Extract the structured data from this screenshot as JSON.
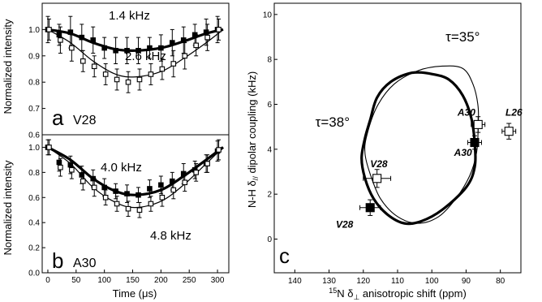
{
  "chart_data": [
    {
      "panel_letter": "a",
      "panel_name": "V28",
      "type": "scatter",
      "xlabel": "",
      "ylabel": "Normalized intensity",
      "xlim": [
        -10,
        320
      ],
      "ylim": [
        0.6,
        1.1
      ],
      "xticks": [],
      "xtick_labels": [],
      "yticks": [
        0.6,
        0.7,
        0.8,
        0.9,
        1.0
      ],
      "ytick_labels": [
        "0.6",
        "0.7",
        "0.8",
        "0.9",
        "1.0"
      ],
      "annotations": [
        {
          "text": "1.4 kHz",
          "x": 105,
          "y": 1.06
        },
        {
          "text": "2.6 kHz",
          "x": 145,
          "y": 0.68
        }
      ],
      "series": [
        {
          "marker": "filled-square",
          "x": [
            0,
            20,
            40,
            60,
            80,
            100,
            120,
            140,
            160,
            180,
            200,
            220,
            240,
            260,
            280,
            300
          ],
          "y": [
            1.0,
            0.98,
            0.99,
            0.97,
            0.96,
            0.93,
            0.92,
            0.92,
            0.92,
            0.93,
            0.93,
            0.95,
            0.96,
            0.98,
            0.99,
            1.0
          ],
          "err": [
            0.05,
            0.04,
            0.06,
            0.05,
            0.05,
            0.04,
            0.05,
            0.05,
            0.05,
            0.04,
            0.05,
            0.05,
            0.05,
            0.04,
            0.05,
            0.05
          ]
        },
        {
          "marker": "open-square",
          "x": [
            0,
            20,
            40,
            60,
            80,
            100,
            120,
            140,
            160,
            180,
            200,
            220,
            240,
            260,
            280,
            300
          ],
          "y": [
            1.0,
            0.96,
            0.93,
            0.88,
            0.86,
            0.83,
            0.81,
            0.8,
            0.81,
            0.83,
            0.85,
            0.87,
            0.9,
            0.94,
            0.97,
            1.0
          ],
          "err": [
            0.04,
            0.05,
            0.05,
            0.04,
            0.04,
            0.04,
            0.04,
            0.04,
            0.04,
            0.04,
            0.04,
            0.05,
            0.05,
            0.04,
            0.05,
            0.04
          ]
        }
      ],
      "fits": [
        {
          "label": "1.4 kHz",
          "x": [
            0,
            40,
            80,
            120,
            155,
            200,
            240,
            280,
            310
          ],
          "y": [
            1.0,
            0.985,
            0.95,
            0.925,
            0.92,
            0.93,
            0.955,
            0.985,
            1.0
          ],
          "stroke": "thick"
        },
        {
          "label": "2.6 kHz",
          "x": [
            0,
            40,
            80,
            120,
            155,
            200,
            240,
            280,
            310
          ],
          "y": [
            1.0,
            0.95,
            0.88,
            0.83,
            0.82,
            0.84,
            0.89,
            0.95,
            1.0
          ],
          "stroke": "thin"
        }
      ]
    },
    {
      "panel_letter": "b",
      "panel_name": "A30",
      "type": "scatter",
      "xlabel": "Time (μs)",
      "ylabel": "Normalized intensity",
      "xlim": [
        -10,
        320
      ],
      "ylim": [
        0.0,
        1.1
      ],
      "xticks": [
        0,
        50,
        100,
        150,
        200,
        250,
        300
      ],
      "xtick_labels": [
        "0",
        "50",
        "100",
        "150",
        "200",
        "250",
        "300"
      ],
      "yticks": [
        0.0,
        0.2,
        0.4,
        0.6,
        0.8,
        1.0
      ],
      "ytick_labels": [
        "0.0",
        "0.2",
        "0.4",
        "0.6",
        "0.8",
        "1.0"
      ],
      "annotations": [
        {
          "text": "4.0 kHz",
          "x": 90,
          "y": 0.96
        },
        {
          "text": "4.8 kHz",
          "x": 190,
          "y": 0.32
        }
      ],
      "series": [
        {
          "marker": "filled-square",
          "x": [
            0,
            20,
            40,
            60,
            80,
            100,
            120,
            140,
            160,
            180,
            200,
            220,
            240,
            260,
            280,
            300
          ],
          "y": [
            1.0,
            0.88,
            0.86,
            0.78,
            0.75,
            0.68,
            0.65,
            0.63,
            0.62,
            0.67,
            0.7,
            0.73,
            0.79,
            0.82,
            0.87,
            0.97
          ],
          "err": [
            0.06,
            0.07,
            0.07,
            0.07,
            0.07,
            0.07,
            0.06,
            0.07,
            0.06,
            0.07,
            0.07,
            0.07,
            0.08,
            0.07,
            0.07,
            0.08
          ]
        },
        {
          "marker": "open-square",
          "x": [
            0,
            20,
            40,
            60,
            80,
            100,
            120,
            140,
            160,
            180,
            200,
            220,
            240,
            260,
            280,
            300
          ],
          "y": [
            1.0,
            0.84,
            0.82,
            0.73,
            0.68,
            0.6,
            0.55,
            0.51,
            0.5,
            0.55,
            0.6,
            0.66,
            0.72,
            0.8,
            0.87,
            0.98
          ],
          "err": [
            0.06,
            0.07,
            0.07,
            0.07,
            0.07,
            0.06,
            0.06,
            0.06,
            0.06,
            0.06,
            0.07,
            0.07,
            0.07,
            0.07,
            0.07,
            0.08
          ]
        }
      ],
      "fits": [
        {
          "label": "4.0 kHz",
          "x": [
            0,
            40,
            80,
            120,
            155,
            200,
            240,
            280,
            310
          ],
          "y": [
            1.0,
            0.9,
            0.75,
            0.65,
            0.62,
            0.66,
            0.77,
            0.9,
            1.0
          ],
          "stroke": "thick"
        },
        {
          "label": "4.8 kHz",
          "x": [
            0,
            40,
            80,
            120,
            155,
            200,
            240,
            280,
            310
          ],
          "y": [
            1.0,
            0.87,
            0.68,
            0.56,
            0.52,
            0.57,
            0.7,
            0.87,
            1.0
          ],
          "stroke": "thin"
        }
      ]
    },
    {
      "panel_letter": "c",
      "type": "scatter",
      "xlabel_sup": "15",
      "xlabel_main": "N δ",
      "xlabel_sub": "⊥",
      "xlabel_rest": " anisotropic shift (ppm)",
      "ylabel_main": "N-H δ",
      "ylabel_sub": "//",
      "ylabel_rest": " dipolar coupling (kHz)",
      "xlim": [
        146,
        74
      ],
      "ylim": [
        -1.5,
        10.5
      ],
      "xticks": [
        140,
        130,
        120,
        110,
        100,
        90,
        80
      ],
      "xtick_labels": [
        "140",
        "130",
        "120",
        "110",
        "100",
        "90",
        "80"
      ],
      "yticks": [
        0,
        2,
        4,
        6,
        8,
        10
      ],
      "ytick_labels": [
        "0",
        "2",
        "4",
        "6",
        "8",
        "10"
      ],
      "wheels": [
        {
          "label": "τ=38°",
          "label_x": 134,
          "label_y": 5.0,
          "stroke": "thick",
          "points": [
            [
              118,
              5.3
            ],
            [
              116,
              6.3
            ],
            [
              112,
              7.0
            ],
            [
              106,
              7.4
            ],
            [
              100,
              7.35
            ],
            [
              95,
              7.1
            ],
            [
              91,
              6.4
            ],
            [
              88.5,
              5.4
            ],
            [
              87.5,
              4.3
            ],
            [
              87.5,
              3.2
            ],
            [
              90,
              2.3
            ],
            [
              97,
              1.3
            ],
            [
              103,
              0.8
            ],
            [
              108,
              0.7
            ],
            [
              113,
              1.1
            ],
            [
              117,
              1.8
            ],
            [
              119.5,
              2.7
            ],
            [
              120.5,
              3.6
            ],
            [
              119.5,
              4.5
            ]
          ]
        },
        {
          "label": "τ=35°",
          "label_x": 96,
          "label_y": 8.8,
          "stroke": "thin",
          "points": [
            [
              119,
              4.6
            ],
            [
              116,
              5.9
            ],
            [
              111,
              6.9
            ],
            [
              104,
              7.5
            ],
            [
              97,
              7.7
            ],
            [
              91,
              7.6
            ],
            [
              88,
              6.9
            ],
            [
              86.5,
              5.9
            ],
            [
              86.5,
              4.8
            ],
            [
              87,
              3.8
            ],
            [
              89,
              2.8
            ],
            [
              93,
              1.8
            ],
            [
              98,
              1.0
            ],
            [
              104,
              0.7
            ],
            [
              110,
              1.0
            ],
            [
              115,
              1.8
            ],
            [
              118,
              2.9
            ],
            [
              119.5,
              3.8
            ]
          ]
        }
      ],
      "points": [
        {
          "label": "V28",
          "marker": "open-square",
          "x": 116,
          "y": 2.7,
          "xerr": 4,
          "yerr": 0.4,
          "label_dx": 2,
          "label_dy": 0.5
        },
        {
          "label": "V28",
          "marker": "filled-square",
          "x": 118,
          "y": 1.4,
          "xerr": 3,
          "yerr": 0.35,
          "label_dx": 10,
          "label_dy": -0.9
        },
        {
          "label": "A30",
          "marker": "open-square",
          "x": 86.5,
          "y": 5.1,
          "xerr": 2,
          "yerr": 0.35,
          "label_dx": 6,
          "label_dy": 0.4
        },
        {
          "label": "A30",
          "marker": "filled-square",
          "x": 87.5,
          "y": 4.3,
          "xerr": 2,
          "yerr": 0.3,
          "label_dx": 6,
          "label_dy": -0.6
        },
        {
          "label": "L26",
          "marker": "open-square",
          "x": 77.5,
          "y": 4.8,
          "xerr": 2,
          "yerr": 0.35,
          "label_dx": 1,
          "label_dy": 0.7
        }
      ]
    }
  ]
}
